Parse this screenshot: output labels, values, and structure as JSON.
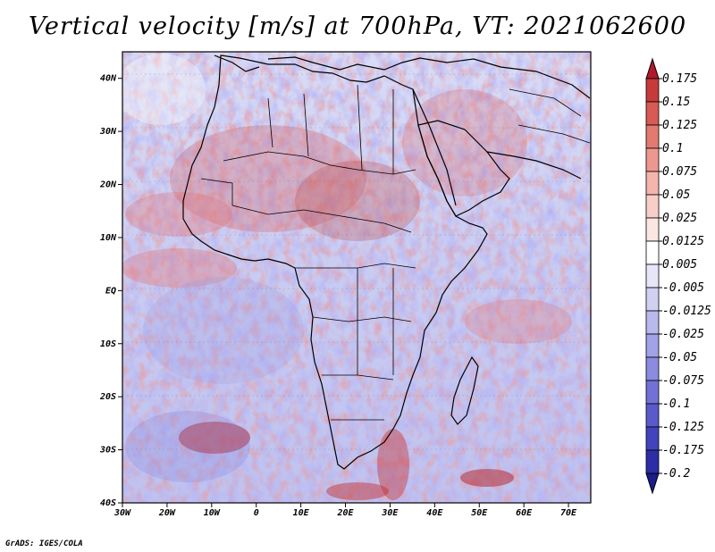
{
  "title": "Vertical velocity [m/s] at 700hPa, VT: 2021062600",
  "credit": "GrADS: IGES/COLA",
  "map": {
    "lon_range": [
      -30,
      75
    ],
    "lat_range": [
      -40,
      45
    ],
    "x_tick_labels": [
      "30W",
      "20W",
      "10W",
      "0",
      "10E",
      "20E",
      "30E",
      "40E",
      "50E",
      "60E",
      "70E"
    ],
    "y_tick_labels": [
      "40N",
      "30N",
      "20N",
      "10N",
      "EQ",
      "10S",
      "20S",
      "30S",
      "40S"
    ]
  },
  "colorbar": {
    "labels": [
      "0.175",
      "0.15",
      "0.125",
      "0.1",
      "0.075",
      "0.05",
      "0.025",
      "0.0125",
      "0.005",
      "-0.005",
      "-0.0125",
      "-0.025",
      "-0.05",
      "-0.075",
      "-0.1",
      "-0.125",
      "-0.175",
      "-0.2"
    ],
    "colors": [
      "#b2182b",
      "#c63a3a",
      "#d75a55",
      "#e27a72",
      "#ec9890",
      "#f3b5ad",
      "#f8cfc8",
      "#fbe6e2",
      "#ffffff",
      "#e6e6f8",
      "#d0d0f3",
      "#b9b9ee",
      "#a2a2e8",
      "#8b8be0",
      "#7272d6",
      "#5a5acb",
      "#4343bd",
      "#2d2da8",
      "#1c1c8a"
    ]
  }
}
